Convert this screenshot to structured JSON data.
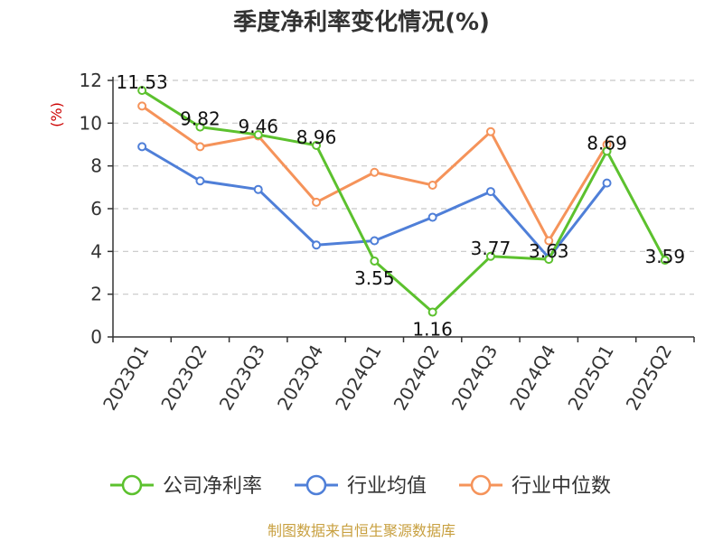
{
  "chart_data": {
    "type": "line",
    "title": "季度净利率变化情况(%)",
    "ylabel": "(%)",
    "xlabel": "",
    "ylim": [
      0,
      12
    ],
    "yticks": [
      0,
      2,
      4,
      6,
      8,
      10,
      12
    ],
    "grid": true,
    "legend_position": "bottom",
    "categories": [
      "2023Q1",
      "2023Q2",
      "2023Q3",
      "2023Q4",
      "2024Q1",
      "2024Q2",
      "2024Q3",
      "2024Q4",
      "2025Q1",
      "2025Q2"
    ],
    "series": [
      {
        "name": "公司净利率",
        "color": "#5cc12e",
        "values": [
          11.53,
          9.82,
          9.46,
          8.96,
          3.55,
          1.16,
          3.77,
          3.63,
          8.69,
          3.59
        ],
        "labels": [
          "11.53",
          "9.82",
          "9.46",
          "8.96",
          "3.55",
          "1.16",
          "3.77",
          "3.63",
          "8.69",
          "3.59"
        ]
      },
      {
        "name": "行业均值",
        "color": "#4f7fd8",
        "values": [
          8.9,
          7.3,
          6.9,
          4.3,
          4.5,
          5.6,
          6.8,
          3.7,
          7.2,
          null
        ]
      },
      {
        "name": "行业中位数",
        "color": "#f5935a",
        "values": [
          10.8,
          8.9,
          9.4,
          6.3,
          7.7,
          7.1,
          9.6,
          4.5,
          9.0,
          null
        ]
      }
    ]
  },
  "source": "制图数据来自恒生聚源数据库"
}
